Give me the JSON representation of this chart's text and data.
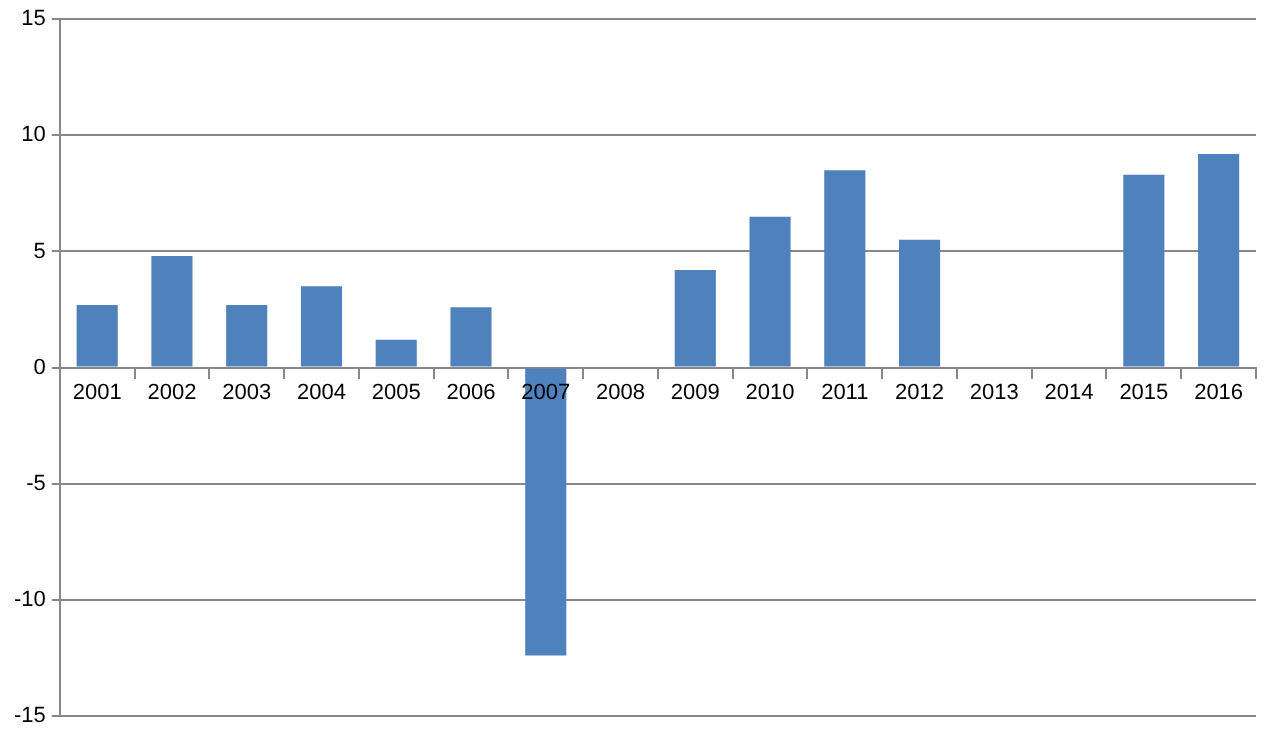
{
  "chart_data": {
    "type": "bar",
    "categories": [
      "2001",
      "2002",
      "2003",
      "2004",
      "2005",
      "2006",
      "2007",
      "2008",
      "2009",
      "2010",
      "2011",
      "2012",
      "2013",
      "2014",
      "2015",
      "2016"
    ],
    "values": [
      2.7,
      4.8,
      2.7,
      3.5,
      1.2,
      2.6,
      -12.4,
      0,
      4.2,
      6.5,
      8.5,
      5.5,
      0,
      0,
      8.3,
      9.2
    ],
    "color": "#4f81bd",
    "ylim": [
      -15,
      15
    ],
    "yticks": [
      -15,
      -10,
      -5,
      0,
      5,
      10,
      15
    ],
    "grid": "y",
    "legend": false
  }
}
